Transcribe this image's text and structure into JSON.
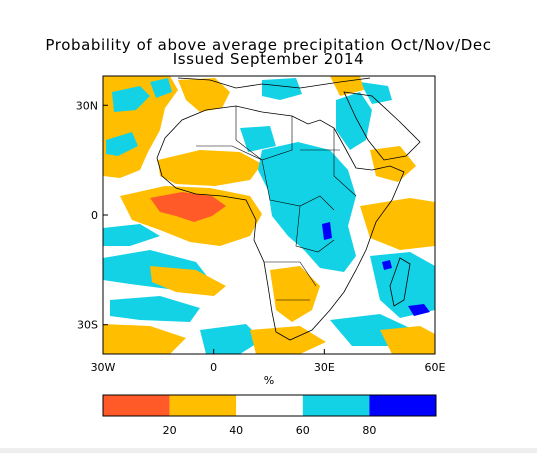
{
  "title_line1": "Probability of above average precipitation Oct/Nov/Dec",
  "title_line2": "Issued September 2014",
  "axes": {
    "x_ticks": [
      {
        "label": "30W",
        "lon": -30
      },
      {
        "label": "0",
        "lon": 0
      },
      {
        "label": "30E",
        "lon": 30
      },
      {
        "label": "60E",
        "lon": 60
      }
    ],
    "y_ticks": [
      {
        "label": "30N",
        "lat": 30
      },
      {
        "label": "0",
        "lat": 0
      },
      {
        "label": "30S",
        "lat": -30
      }
    ],
    "x_range": [
      -30,
      60
    ],
    "y_range": [
      -38,
      38
    ],
    "unit_label": "%"
  },
  "colorbar": {
    "bins": [
      {
        "range": [
          0,
          20
        ],
        "color": "#ff5a28"
      },
      {
        "range": [
          20,
          40
        ],
        "color": "#ffbe00"
      },
      {
        "range": [
          40,
          60
        ],
        "color": "#ffffff"
      },
      {
        "range": [
          60,
          80
        ],
        "color": "#14d2e6"
      },
      {
        "range": [
          80,
          100
        ],
        "color": "#0000ff"
      }
    ],
    "tick_labels": [
      "20",
      "40",
      "60",
      "80"
    ]
  },
  "colors": {
    "below_strong": "#ff5a28",
    "below": "#ffbe00",
    "normal": "#ffffff",
    "above": "#14d2e6",
    "above_strong": "#0000ff",
    "borders": "#000000"
  }
}
